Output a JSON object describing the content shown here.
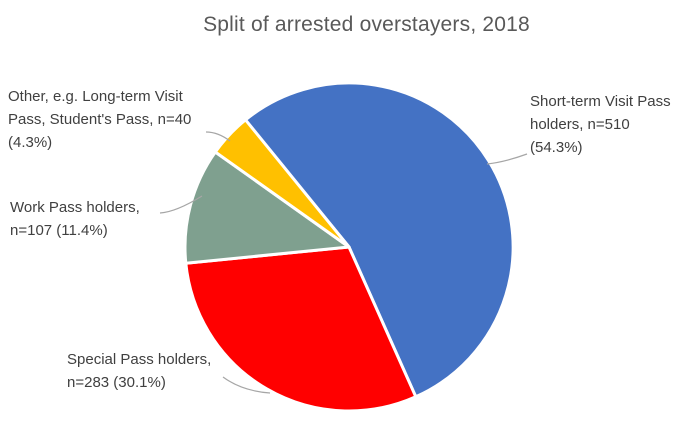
{
  "title": "Split of arrested overstayers, 2018",
  "chart_data": {
    "type": "pie",
    "title": "Split of arrested overstayers, 2018",
    "start_angle_deg": -39.5,
    "legend_position": "none",
    "slices": [
      {
        "id": "short-term-visit-pass",
        "label": "Short-term Visit Pass holders",
        "n": 510,
        "pct": 54.3,
        "color": "#4472C4"
      },
      {
        "id": "special-pass",
        "label": "Special Pass holders",
        "n": 283,
        "pct": 30.1,
        "color": "#FF0000"
      },
      {
        "id": "work-pass",
        "label": "Work Pass holders",
        "n": 107,
        "pct": 11.4,
        "color": "#7FA08F"
      },
      {
        "id": "other",
        "label": "Other, e.g. Long-term Visit Pass, Student's Pass",
        "n": 40,
        "pct": 4.3,
        "color": "#FFC000"
      }
    ]
  },
  "labels": {
    "other": {
      "lines": [
        "Other, e.g. Long-term Visit",
        "Pass, Student's Pass, n=40",
        "(4.3%)"
      ]
    },
    "short": {
      "lines": [
        "Short-term Visit Pass",
        "holders, n=510",
        "(54.3%)"
      ]
    },
    "work": {
      "lines": [
        "Work Pass holders,",
        "n=107 (11.4%)"
      ]
    },
    "special": {
      "lines": [
        "Special Pass holders,",
        "n=283 (30.1%)"
      ]
    }
  },
  "colors": {
    "title_text": "#595959",
    "label_text": "#404040",
    "leader_line": "#A6A6A6",
    "slice_border": "#FFFFFF"
  }
}
